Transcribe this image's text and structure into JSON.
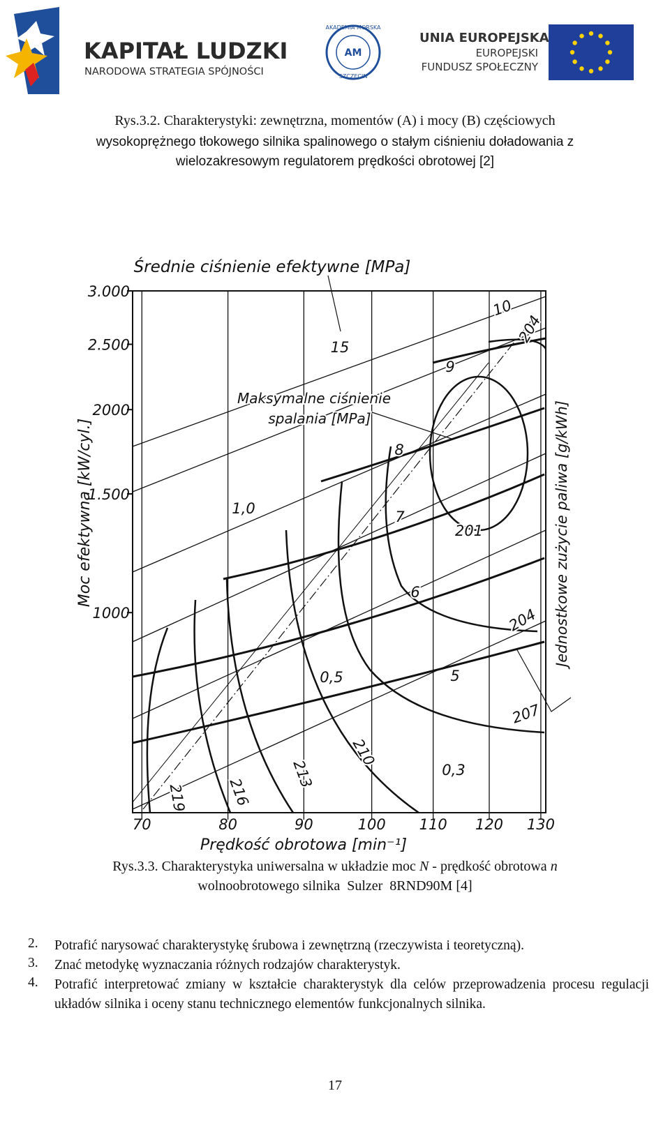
{
  "header": {
    "logo_left": {
      "title": "KAPITAŁ LUDZKI",
      "subtitle": "NARODOWA STRATEGIA SPÓJNOŚCI"
    },
    "logo_center": {
      "ring_top": "AKADEMIA MORSKA",
      "ring_bottom": "SZCZECIN",
      "monogram": "AM"
    },
    "logo_right": {
      "title": "UNIA EUROPEJSKA",
      "line1": "EUROPEJSKI",
      "line2": "FUNDUSZ SPOŁECZNY"
    }
  },
  "figure_2_caption": [
    "Rys.3.2. Charakterystyki: zewnętrzna, momentów (A) i mocy (B) częściowych",
    "wysokoprężnego tłokowego silnika spalinowego o stałym ciśnieniu doładowania z",
    "wielozakresowym regulatorem prędkości obrotowej [2]"
  ],
  "chart_data": {
    "type": "universal-characteristic",
    "x_label": "Prędkość obrotowa [min⁻¹]",
    "y_label": "Moc efektywna [kW/cyl.]",
    "y2_label": "Jednostkowe zużycie paliwa [g/kWh]",
    "annotations": [
      "Średnie ciśnienie efektywne [MPa]",
      "Maksymalne ciśnienie",
      "spalania [MPa]"
    ],
    "curve_labels": [
      "15",
      "10",
      "9",
      "8",
      "7",
      "6",
      "5",
      "1,0",
      "0,5",
      "0,3",
      "204",
      "201",
      "204",
      "207",
      "210",
      "213",
      "216",
      "219"
    ],
    "log_x": true,
    "log_y": true,
    "grid": true,
    "xlim": [
      69,
      131
    ],
    "xticks": [
      70,
      80,
      90,
      100,
      110,
      120,
      130
    ],
    "ylim": [
      505,
      3000
    ],
    "yticks": [
      {
        "value": 1000,
        "label": "1000"
      },
      {
        "value": 1500,
        "label": "1.500"
      },
      2000,
      {
        "value": 2500,
        "label": "2.500"
      },
      {
        "value": 3000,
        "label": "3.000"
      }
    ]
  },
  "figure_3_caption": {
    "line1_parts": [
      "Rys.3.3. Charakterystyka uniwersalna w układzie moc ",
      "N",
      " - prędkość obrotowa ",
      "n"
    ],
    "line2": "wolnoobrotowego silnika  Sulzer  8RND90M [4]"
  },
  "list": [
    {
      "number": "2.",
      "text": "Potrafić narysować charakterystykę śrubowa i zewnętrzną (rzeczywista i teoretyczną)."
    },
    {
      "number": "3.",
      "text": "Znać metodykę wyznaczania różnych rodzajów charakterystyk."
    },
    {
      "number": "4.",
      "text": "Potrafić interpretować zmiany w kształcie charakterystyk dla celów przeprowadzenia procesu regulacji układów silnika i oceny stanu technicznego elementów funkcjonalnych silnika."
    }
  ],
  "page_number": "17"
}
